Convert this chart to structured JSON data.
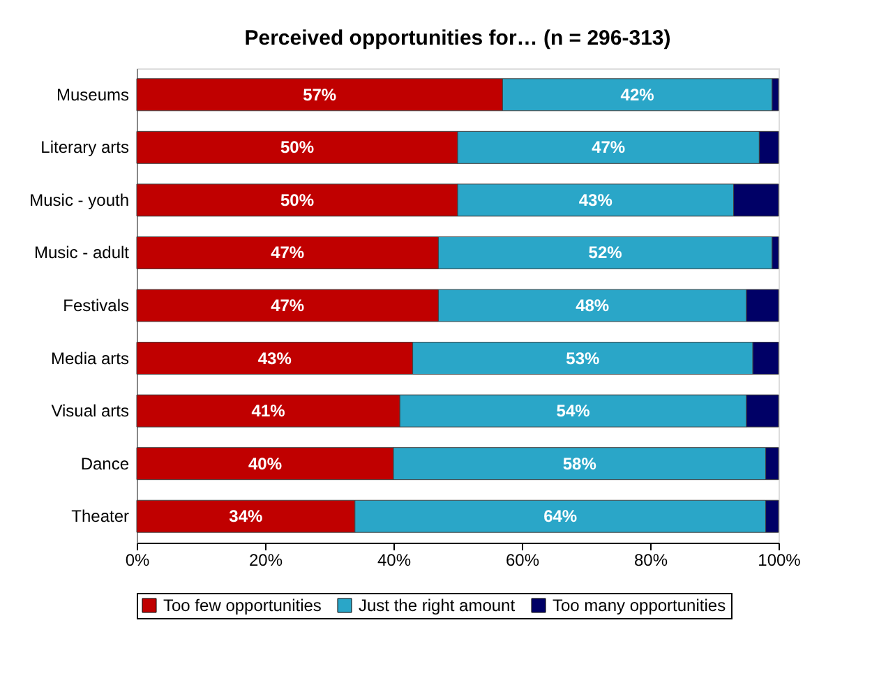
{
  "chart_data": {
    "type": "bar",
    "orientation": "horizontal",
    "stacked": true,
    "title": "Perceived opportunities for… (n = 296-313)",
    "categories": [
      "Museums",
      "Literary arts",
      "Music - youth",
      "Music - adult",
      "Festivals",
      "Media arts",
      "Visual arts",
      "Dance",
      "Theater"
    ],
    "series": [
      {
        "name": "Too few opportunities",
        "color": "#c00000",
        "values": [
          57,
          50,
          50,
          47,
          47,
          43,
          41,
          40,
          34
        ],
        "value_labels": [
          "57%",
          "50%",
          "50%",
          "47%",
          "47%",
          "43%",
          "41%",
          "40%",
          "34%"
        ]
      },
      {
        "name": "Just the right amount",
        "color": "#2aa6c8",
        "values": [
          42,
          47,
          43,
          52,
          48,
          53,
          54,
          58,
          64
        ],
        "value_labels": [
          "42%",
          "47%",
          "43%",
          "52%",
          "48%",
          "53%",
          "54%",
          "58%",
          "64%"
        ]
      },
      {
        "name": "Too many opportunities",
        "color": "#000066",
        "values": [
          1,
          3,
          7,
          1,
          5,
          4,
          5,
          2,
          2
        ]
      }
    ],
    "xlim": [
      0,
      100
    ],
    "xticks": [
      {
        "value": 0,
        "label": "0%"
      },
      {
        "value": 20,
        "label": "20%"
      },
      {
        "value": 40,
        "label": "40%"
      },
      {
        "value": 60,
        "label": "60%"
      },
      {
        "value": 80,
        "label": "80%"
      },
      {
        "value": 100,
        "label": "100%"
      }
    ],
    "grid": false,
    "legend": "bottom"
  }
}
